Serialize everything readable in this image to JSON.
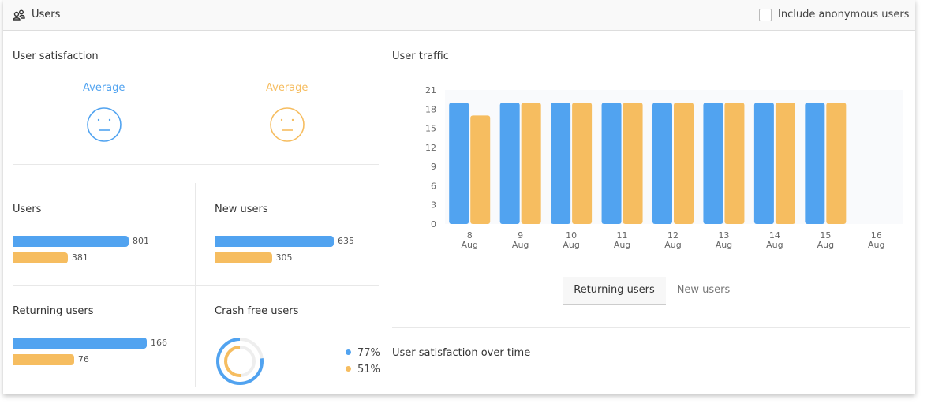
{
  "header": {
    "title": "Users",
    "icon": "users-icon",
    "checkbox_label": "Include anonymous users",
    "checkbox_checked": false
  },
  "colors": {
    "blue": "#51a3f0",
    "orange": "#f6bd60"
  },
  "satisfaction": {
    "title": "User satisfaction",
    "items": [
      {
        "label": "Average",
        "color": "#51a3f0",
        "icon": "neutral-face-icon"
      },
      {
        "label": "Average",
        "color": "#f6bd60",
        "icon": "neutral-face-icon"
      }
    ]
  },
  "users": {
    "title": "Users",
    "values": [
      801,
      381
    ]
  },
  "new_users": {
    "title": "New users",
    "values": [
      635,
      305
    ]
  },
  "returning_users": {
    "title": "Returning users",
    "values": [
      166,
      76
    ]
  },
  "crash_free": {
    "title": "Crash free users",
    "values": [
      77,
      51
    ],
    "labels": [
      "77%",
      "51%"
    ]
  },
  "traffic": {
    "title": "User traffic",
    "tabs": [
      {
        "label": "Returning users",
        "active": true
      },
      {
        "label": "New users",
        "active": false
      }
    ]
  },
  "satisfaction_over_time": {
    "title": "User satisfaction over time"
  },
  "chart_data": {
    "type": "bar",
    "title": "User traffic",
    "categories": [
      "8 Aug",
      "9 Aug",
      "10 Aug",
      "11 Aug",
      "12 Aug",
      "13 Aug",
      "14 Aug",
      "15 Aug",
      "16 Aug"
    ],
    "series": [
      {
        "values": [
          19,
          19,
          19,
          19,
          19,
          19,
          19,
          19,
          0
        ],
        "color": "#51a3f0"
      },
      {
        "values": [
          17,
          19,
          19,
          19,
          19,
          19,
          19,
          19,
          0
        ],
        "color": "#f6bd60"
      }
    ],
    "yticks": [
      0,
      3,
      6,
      9,
      12,
      15,
      18,
      21
    ],
    "ylim": [
      0,
      21
    ],
    "grid": false
  }
}
